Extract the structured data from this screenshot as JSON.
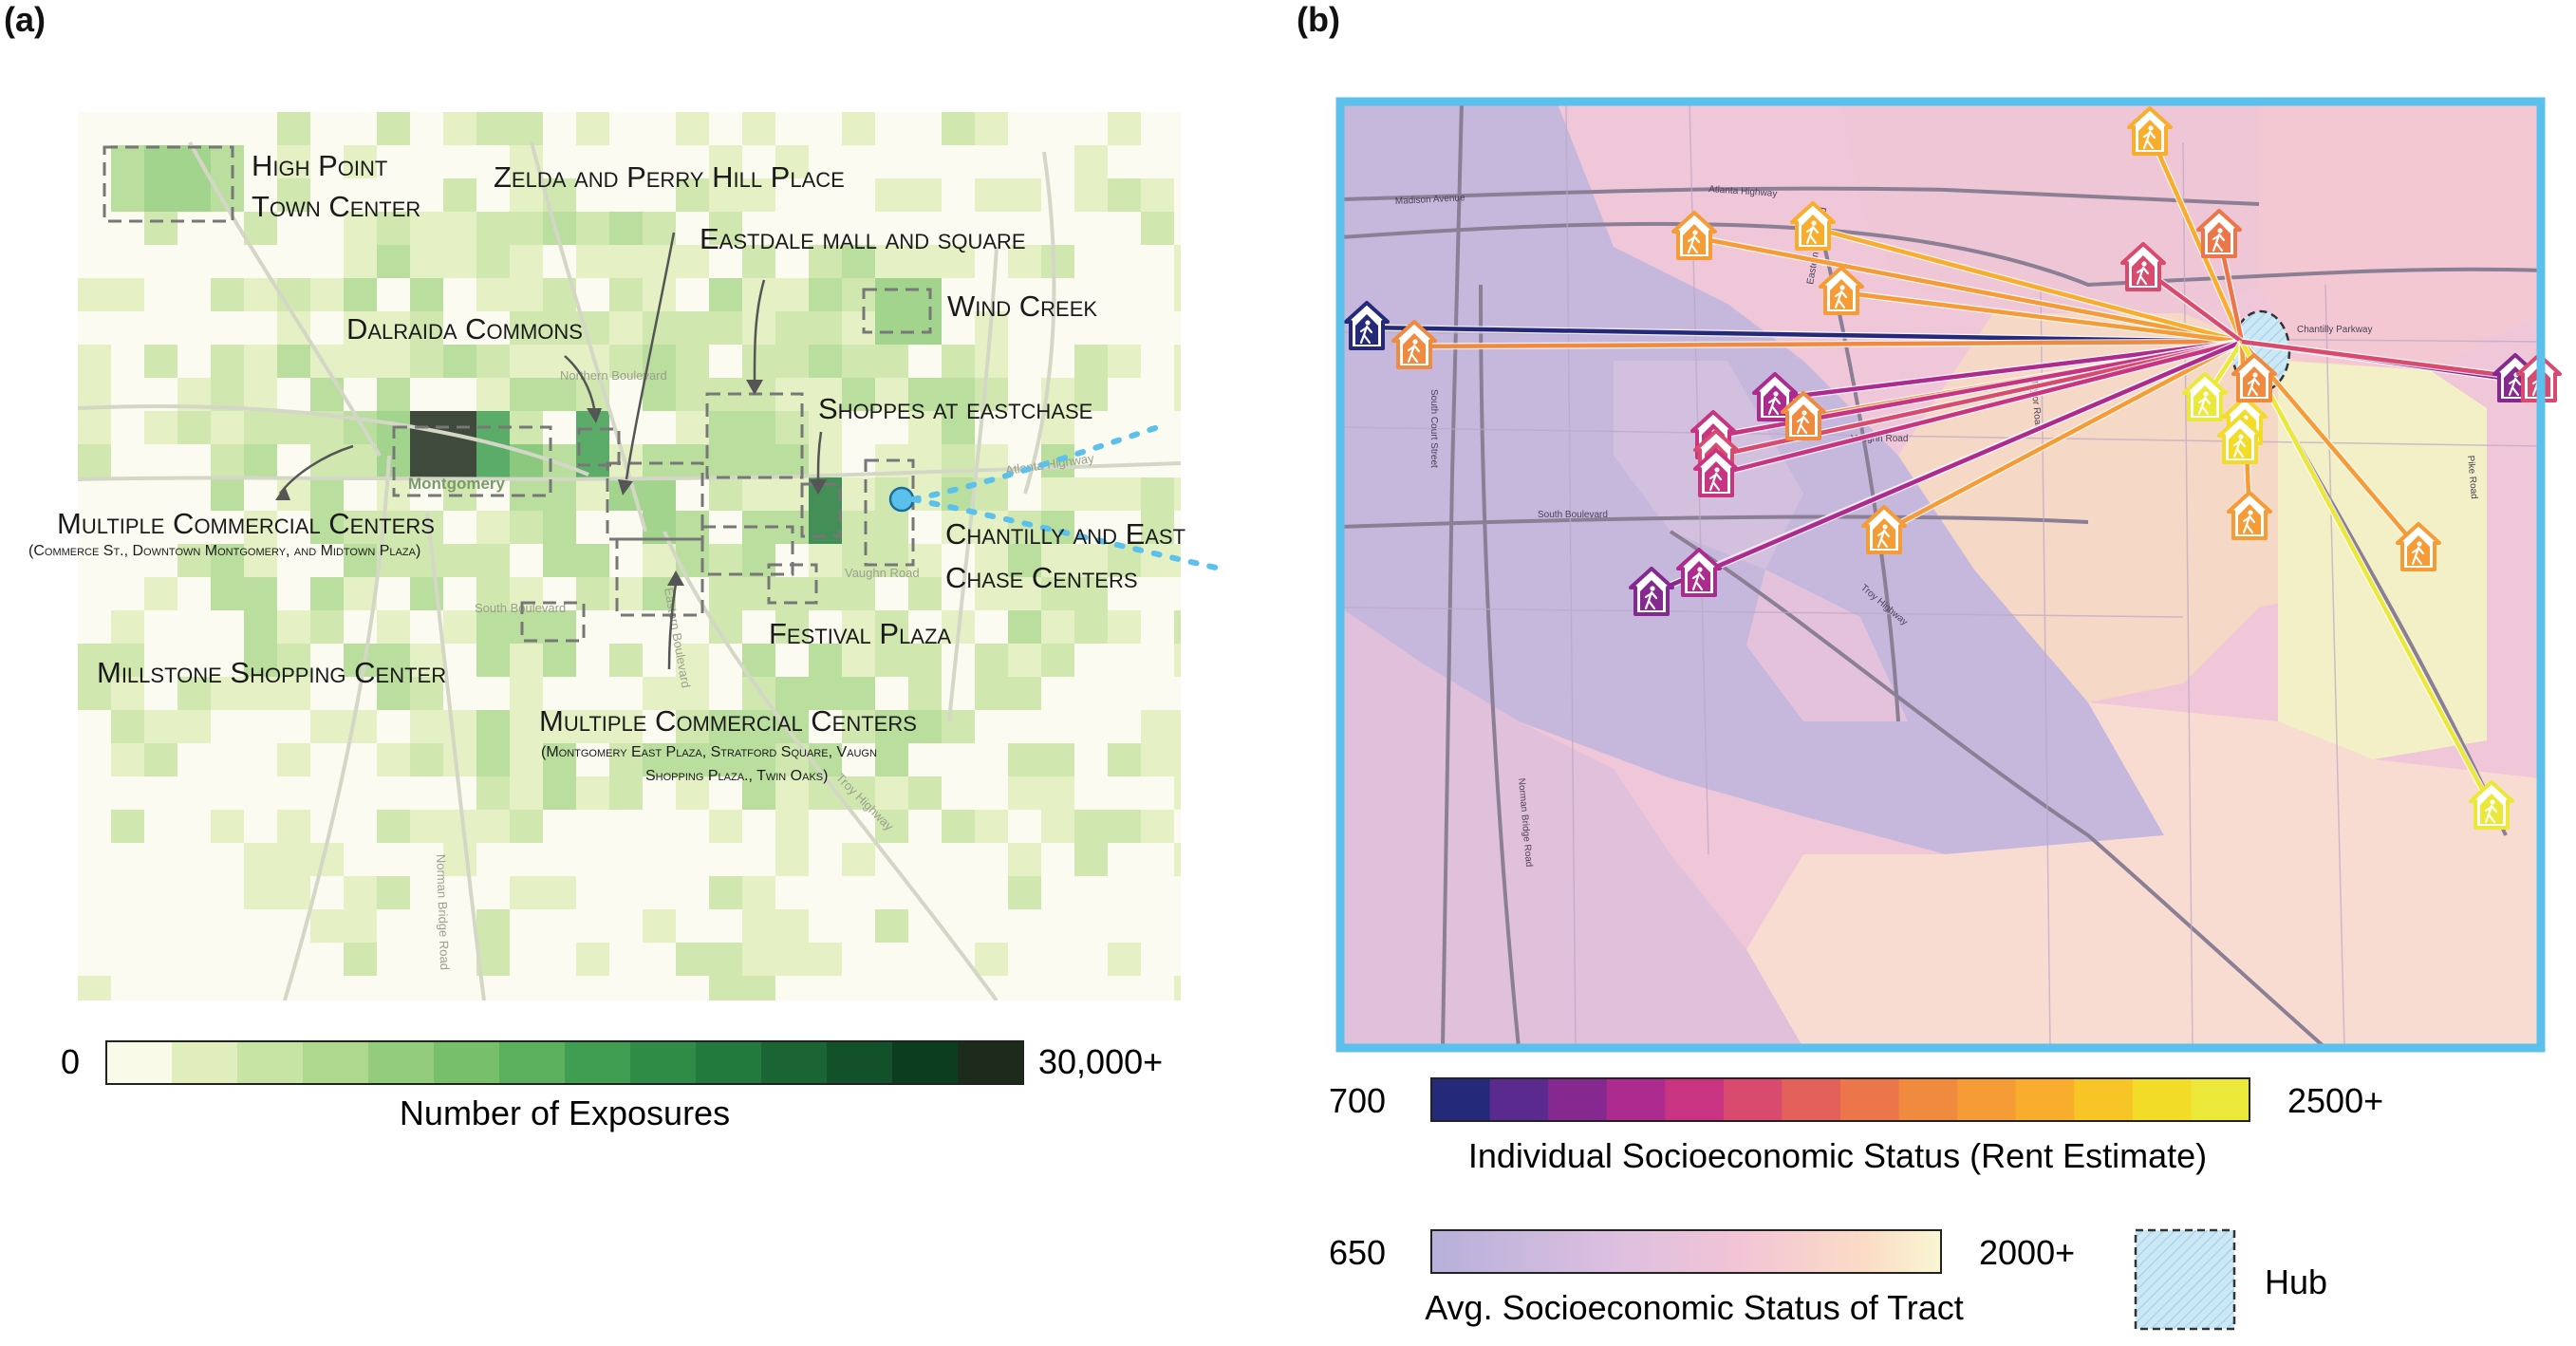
{
  "panel_a": {
    "label": "(a)",
    "map_labels": {
      "osm_montgomery": "Montgomery",
      "osm_atlanta_hwy": "Atlanta Highway",
      "osm_vaughn": "Vaughn Road",
      "osm_south_blvd": "South Boulevard",
      "osm_troy": "Troy Highway",
      "osm_norman": "Norman Bridge Road",
      "osm_northern": "Northern Boulevard",
      "osm_eastern": "Eastern Boulevard"
    },
    "places": {
      "high_point_1": "High Point",
      "high_point_2": "Town Center",
      "zelda": "Zelda and Perry Hill Place",
      "eastdale": "Eastdale mall and square",
      "wind_creek": "Wind Creek",
      "dalraida": "Dalraida Commons",
      "shoppes": "Shoppes at eastchase",
      "multi1_title": "Multiple Commercial Centers",
      "multi1_sub": "(Commerce St., Downtown Montgomery, and Midtown Plaza)",
      "chantilly_1": "Chantilly and East",
      "chantilly_2": "Chase Centers",
      "festival": "Festival Plaza",
      "millstone": "Millstone Shopping Center",
      "multi2_title": "Multiple Commercial Centers",
      "multi2_sub_1": "(Montgomery East Plaza, Stratford Square, Vaugn",
      "multi2_sub_2": "Shopping Plaza., Twin Oaks)"
    },
    "legend": {
      "min": "0",
      "max": "30,000+",
      "title": "Number of Exposures",
      "colors": [
        "#f9fbe8",
        "#e0eebd",
        "#c8e4a4",
        "#aed88e",
        "#93cc7c",
        "#77bf6b",
        "#5bb05e",
        "#3f9e51",
        "#2f8c47",
        "#237a3d",
        "#1a6533",
        "#13512a",
        "#0d3d1f",
        "#1e2a1c"
      ]
    }
  },
  "panel_b": {
    "label": "(b)",
    "map_labels": {
      "atlanta_hwy": "Atlanta Highway",
      "madison": "Madison Avenue",
      "south_blvd": "South Boulevard",
      "vaughn": "Vaughn Road",
      "troy": "Troy Highway",
      "norman": "Norman Bridge Road",
      "taylor": "Taylor Road",
      "pike": "Pike Road",
      "chantilly": "Chantilly Parkway",
      "eastern": "Eastern Boulevard",
      "south_court": "South Court Street"
    },
    "legend_individual": {
      "min": "700",
      "max": "2500+",
      "title": "Individual Socioeconomic Status (Rent Estimate)",
      "colors": [
        "#24297a",
        "#5a2a8e",
        "#85288f",
        "#ad2a8e",
        "#c83382",
        "#d84a6e",
        "#e4605a",
        "#ec764a",
        "#f08a3f",
        "#f59c36",
        "#f8ae2c",
        "#f7c526",
        "#f2dc28",
        "#ebe83a"
      ]
    },
    "legend_tract": {
      "min": "650",
      "max": "2000+",
      "title": "Avg. Socioeconomic Status of Tract"
    },
    "hub_legend": "Hub"
  }
}
